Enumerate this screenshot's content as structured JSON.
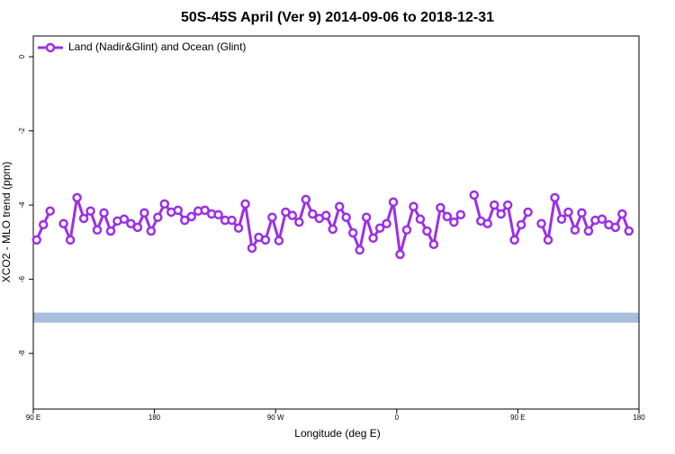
{
  "chart_data": {
    "type": "line",
    "title": "50S-45S April (Ver 9)   2014-09-06 to 2018-12-31",
    "x_label": "Longitude (deg E)",
    "y_label": "XCO2 - MLO trend (ppm)",
    "x": [
      92.5,
      97.5,
      102.5,
      107.5,
      112.5,
      117.5,
      122.5,
      127.5,
      132.5,
      137.5,
      142.5,
      147.5,
      152.5,
      157.5,
      162.5,
      167.5,
      172.5,
      177.5,
      182.5,
      187.5,
      192.5,
      197.5,
      202.5,
      207.5,
      212.5,
      217.5,
      222.5,
      227.5,
      232.5,
      237.5,
      242.5,
      247.5,
      252.5,
      257.5,
      262.5,
      267.5,
      272.5,
      277.5,
      282.5,
      287.5,
      292.5,
      297.5,
      302.5,
      307.5,
      312.5,
      317.5,
      322.5,
      327.5,
      332.5,
      337.5,
      342.5,
      347.5,
      352.5,
      357.5,
      362.5,
      367.5,
      372.5,
      377.5,
      382.5,
      387.5,
      392.5,
      397.5,
      402.5,
      407.5,
      412.5,
      417.5,
      422.5,
      427.5,
      432.5,
      437.5,
      442.5,
      447.5,
      452.5,
      457.5,
      462.5,
      467.5,
      472.5,
      477.5,
      482.5,
      487.5,
      492.5,
      497.5,
      502.5,
      507.5,
      512.5,
      517.5,
      522.5,
      527.5,
      532.5
    ],
    "series": [
      {
        "name": "Land (Nadir&Glint) and Ocean (Glint)",
        "color": "#9b30e6",
        "values": [
          -4.94,
          -4.53,
          -4.16,
          null,
          -4.5,
          -4.94,
          -3.8,
          -4.36,
          -4.16,
          -4.67,
          -4.21,
          -4.7,
          -4.43,
          -4.38,
          -4.5,
          -4.6,
          -4.21,
          -4.7,
          -4.33,
          -3.97,
          -4.19,
          -4.14,
          -4.41,
          -4.31,
          -4.16,
          -4.14,
          -4.24,
          -4.26,
          -4.41,
          -4.41,
          -4.62,
          -3.97,
          -5.16,
          -4.87,
          -4.94,
          -4.33,
          -4.96,
          -4.19,
          -4.28,
          -4.46,
          -3.85,
          -4.24,
          -4.36,
          -4.28,
          -4.65,
          -4.04,
          -4.33,
          -4.75,
          -5.21,
          -4.33,
          -4.89,
          -4.62,
          -4.5,
          -3.92,
          -5.33,
          -4.67,
          -4.04,
          -4.38,
          -4.7,
          -5.06,
          -4.07,
          -4.31,
          -4.46,
          -4.26,
          null,
          -3.73,
          -4.43,
          -4.5,
          -4.0,
          -4.24,
          -4.0,
          -4.94,
          -4.53,
          -4.19,
          null,
          -4.5,
          -4.94,
          -3.8,
          -4.38,
          -4.19,
          -4.67,
          -4.21,
          -4.7,
          -4.41,
          -4.38,
          -4.53,
          -4.6,
          -4.24,
          -4.7
        ]
      }
    ],
    "band": {
      "color": "#a7bedc",
      "ylim": [
        -7.17,
        -6.9
      ]
    },
    "xlim": [
      90,
      540
    ],
    "ylim": [
      -9.5,
      0.56
    ],
    "xticks": [
      {
        "value": 90,
        "label": "90 E"
      },
      180,
      {
        "value": 270,
        "label": "90 W"
      },
      {
        "value": 360,
        "label": "0"
      },
      {
        "value": 450,
        "label": "90 E"
      },
      {
        "value": 540,
        "label": "180"
      }
    ],
    "yticks": [
      0,
      -2,
      -4,
      -6,
      -8
    ],
    "legend": "top-left"
  }
}
